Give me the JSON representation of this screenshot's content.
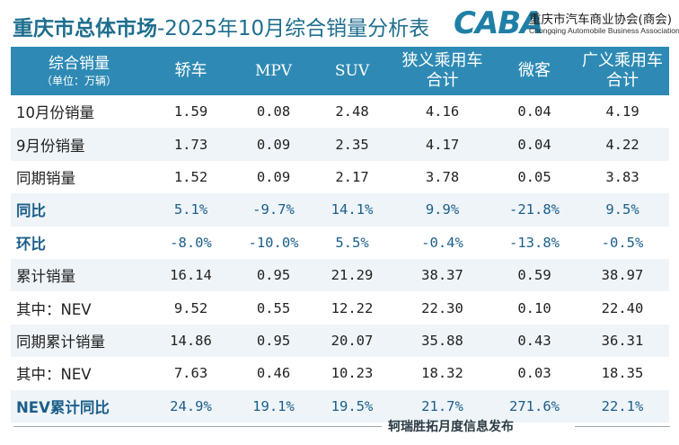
{
  "header": {
    "title_bold": "重庆市总体市场",
    "title_rest": "-2025年10月综合销量分析表",
    "logo_mark": "CABA",
    "logo_name": "重庆市汽车商业协会(商会)",
    "logo_sub": "Chongqing Automobile Business Association"
  },
  "table": {
    "corner_label": "综合销量",
    "corner_unit": "（单位：万辆）",
    "columns": [
      {
        "line1": "轿车",
        "line2": ""
      },
      {
        "line1": "MPV",
        "line2": ""
      },
      {
        "line1": "SUV",
        "line2": ""
      },
      {
        "line1": "狭义乘用车",
        "line2": "合计"
      },
      {
        "line1": "微客",
        "line2": ""
      },
      {
        "line1": "广义乘用车",
        "line2": "合计"
      }
    ],
    "rows": [
      {
        "label": "10月份销量",
        "values": [
          "1.59",
          "0.08",
          "2.48",
          "4.16",
          "0.04",
          "4.19"
        ]
      },
      {
        "label": "9月份销量",
        "values": [
          "1.73",
          "0.09",
          "2.35",
          "4.17",
          "0.04",
          "4.22"
        ]
      },
      {
        "label": "同期销量",
        "values": [
          "1.52",
          "0.09",
          "2.17",
          "3.78",
          "0.05",
          "3.83"
        ]
      },
      {
        "label": "同比",
        "values": [
          "5.1%",
          "-9.7%",
          "14.1%",
          "9.9%",
          "-21.8%",
          "9.5%"
        ]
      },
      {
        "label": "环比",
        "values": [
          "-8.0%",
          "-10.0%",
          "5.5%",
          "-0.4%",
          "-13.8%",
          "-0.5%"
        ]
      },
      {
        "label": "累计销量",
        "values": [
          "16.14",
          "0.95",
          "21.29",
          "38.37",
          "0.59",
          "38.97"
        ]
      },
      {
        "label": "其中：NEV",
        "values": [
          "9.52",
          "0.55",
          "12.22",
          "22.30",
          "0.10",
          "22.40"
        ]
      },
      {
        "label": "同期累计销量",
        "values": [
          "14.86",
          "0.95",
          "20.07",
          "35.88",
          "0.43",
          "36.31"
        ]
      },
      {
        "label": "其中：NEV",
        "values": [
          "7.63",
          "0.46",
          "10.23",
          "18.32",
          "0.03",
          "18.35"
        ]
      },
      {
        "label": "NEV累计同比",
        "values": [
          "24.9%",
          "19.1%",
          "19.5%",
          "21.7%",
          "271.6%",
          "22.1%"
        ]
      }
    ]
  },
  "footer": {
    "text": "轲瑞胜拓月度信息发布"
  },
  "colors": {
    "header_bg": "#2e8ab4",
    "title": "#1e6e8e",
    "percent_text": "#1c5e8a",
    "row_shade": "#eef4f8"
  }
}
